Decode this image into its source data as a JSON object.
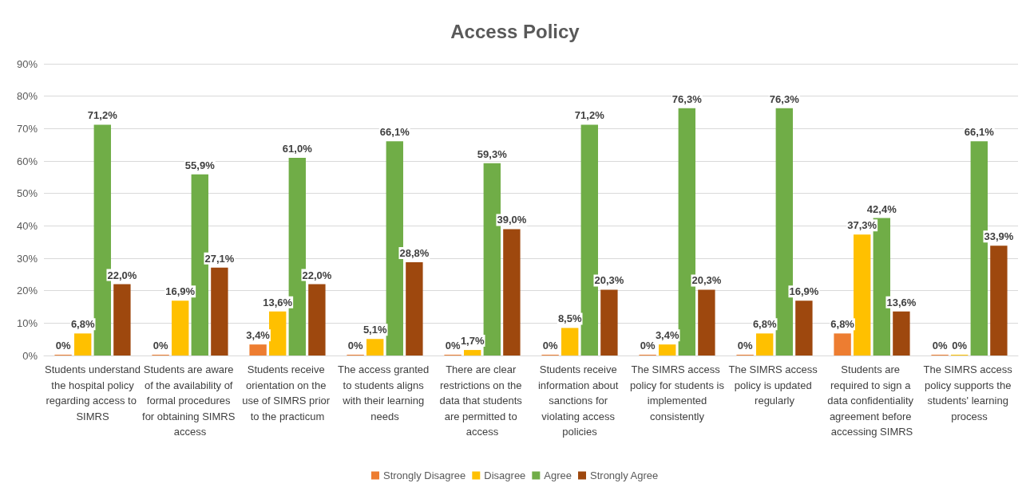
{
  "chart_data": {
    "type": "bar",
    "title": "Access Policy",
    "categories": [
      "Students understand the hospital policy regarding access to SIMRS",
      "Students are aware of the availability of formal procedures for obtaining SIMRS access",
      "Students receive orientation on the use of SIMRS prior to the practicum",
      "The access granted to students aligns with their learning needs",
      "There are clear restrictions on the data that students are permitted to access",
      "Students receive information about sanctions for violating access policies",
      "The SIMRS access policy for students is implemented consistently",
      "The SIMRS access policy is updated regularly",
      "Students are required to sign a data confidentiality agreement before accessing SIMRS",
      "The SIMRS access policy supports the students' learning process"
    ],
    "series": [
      {
        "name": "Strongly Disagree",
        "color": "#ed7d31",
        "values": [
          0,
          0,
          3.4,
          0,
          0,
          0,
          0,
          0,
          6.8,
          0
        ],
        "value_labels": [
          "0%",
          "0%",
          "3,4%",
          "0%",
          "0%",
          "0%",
          "0%",
          "0%",
          "6,8%",
          "0%"
        ]
      },
      {
        "name": "Disagree",
        "color": "#ffc000",
        "values": [
          6.8,
          16.9,
          13.6,
          5.1,
          1.7,
          8.5,
          3.4,
          6.8,
          37.3,
          0
        ],
        "value_labels": [
          "6,8%",
          "16,9%",
          "13,6%",
          "5,1%",
          "1,7%",
          "8,5%",
          "3,4%",
          "6,8%",
          "37,3%",
          "0%"
        ]
      },
      {
        "name": "Agree",
        "color": "#70ad47",
        "values": [
          71.2,
          55.9,
          61.0,
          66.1,
          59.3,
          71.2,
          76.3,
          76.3,
          42.4,
          66.1
        ],
        "value_labels": [
          "71,2%",
          "55,9%",
          "61,0%",
          "66,1%",
          "59,3%",
          "71,2%",
          "76,3%",
          "76,3%",
          "42,4%",
          "66,1%"
        ]
      },
      {
        "name": "Strongly Agree",
        "color": "#9e480e",
        "values": [
          22.0,
          27.1,
          22.0,
          28.8,
          39.0,
          20.3,
          20.3,
          16.9,
          13.6,
          33.9
        ],
        "value_labels": [
          "22,0%",
          "27,1%",
          "22,0%",
          "28,8%",
          "39,0%",
          "20,3%",
          "20,3%",
          "16,9%",
          "13,6%",
          "33,9%"
        ]
      }
    ],
    "ylim": [
      0,
      90
    ],
    "yticks": [
      {
        "value": 0,
        "label": "0%"
      },
      {
        "value": 10,
        "label": "10%"
      },
      {
        "value": 20,
        "label": "20%"
      },
      {
        "value": 30,
        "label": "30%"
      },
      {
        "value": 40,
        "label": "40%"
      },
      {
        "value": 50,
        "label": "50%"
      },
      {
        "value": 60,
        "label": "60%"
      },
      {
        "value": 70,
        "label": "70%"
      },
      {
        "value": 80,
        "label": "80%"
      },
      {
        "value": 90,
        "label": "90%"
      }
    ],
    "grid": "y",
    "legend": "bottom"
  }
}
